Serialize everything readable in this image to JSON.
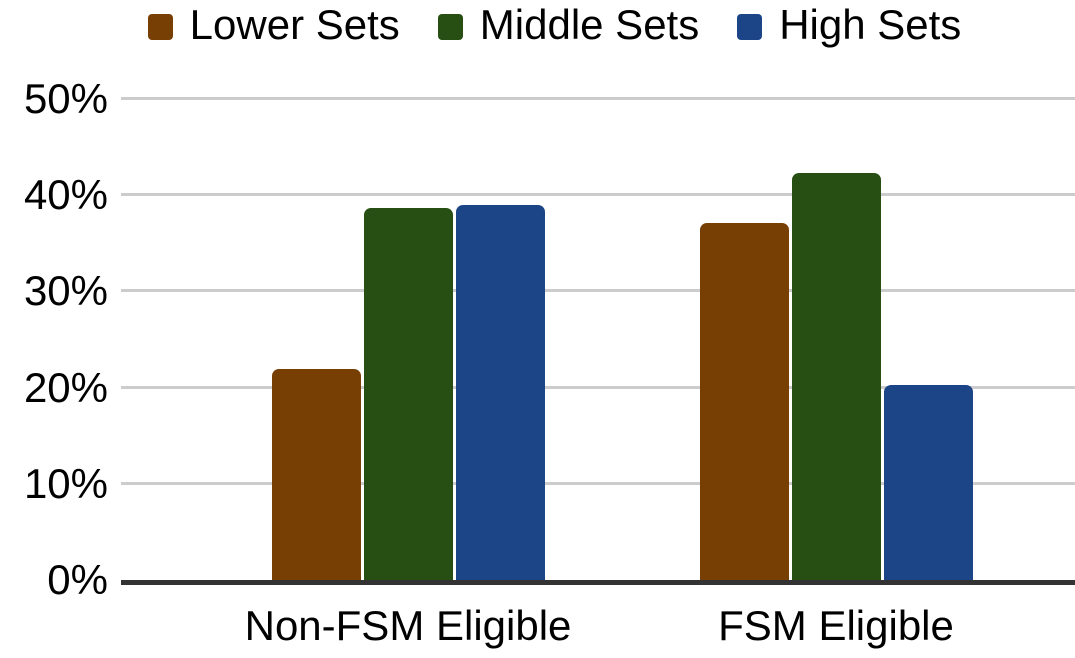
{
  "chart_data": {
    "type": "bar",
    "title": "",
    "categories": [
      "Non-FSM Eligible",
      "FSM Eligible"
    ],
    "series": [
      {
        "name": "Lower Sets",
        "color": "#783F04",
        "values": [
          21.9,
          37.1
        ]
      },
      {
        "name": "Middle Sets",
        "color": "#274E13",
        "values": [
          38.7,
          42.3
        ]
      },
      {
        "name": "High Sets",
        "color": "#1C4587",
        "values": [
          39.0,
          20.3
        ]
      }
    ],
    "xlabel": "",
    "ylabel": "",
    "ylim": [
      0,
      50
    ],
    "ytick_values": [
      0,
      10,
      20,
      30,
      40,
      50
    ],
    "ytick_labels": [
      "0%",
      "10%",
      "20%",
      "30%",
      "40%",
      "50%"
    ],
    "grid": true,
    "legend_position": "top"
  },
  "colors": {
    "background": "#FFFFFF",
    "gridline": "#CCCCCC",
    "axis_line": "#333333",
    "label_text": "#000000"
  }
}
